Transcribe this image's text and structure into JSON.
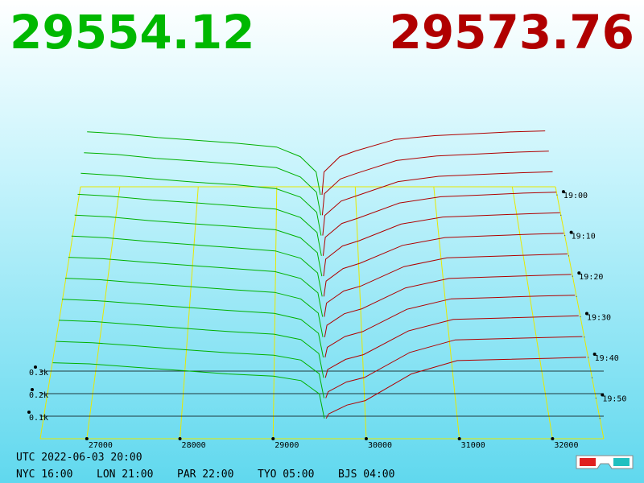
{
  "chart_data": {
    "type": "depth3d",
    "bid_price": 29554.12,
    "ask_price": 29573.76,
    "bid_color": "#00b000",
    "ask_color": "#b00000",
    "bid_prices": [
      26600,
      27000,
      27500,
      28000,
      28500,
      29000,
      29300,
      29500,
      29554
    ],
    "ask_prices": [
      29574,
      29600,
      29800,
      30000,
      30500,
      31000,
      31500,
      32000,
      32400
    ],
    "xlim": [
      26500,
      32550
    ],
    "xticks": [
      27000,
      28000,
      29000,
      30000,
      31000,
      32000
    ],
    "tlim": [
      -2,
      60
    ],
    "tticks": [
      {
        "value": 0,
        "label": "19:00"
      },
      {
        "value": 10,
        "label": "19:10"
      },
      {
        "value": 20,
        "label": "19:20"
      },
      {
        "value": 30,
        "label": "19:30"
      },
      {
        "value": 40,
        "label": "19:40"
      },
      {
        "value": 50,
        "label": "19:50"
      }
    ],
    "zlim": [
      0,
      400
    ],
    "zticks": [
      {
        "value": 100,
        "label": "0.1k"
      },
      {
        "value": 200,
        "label": "0.2k"
      },
      {
        "value": 300,
        "label": "0.3k"
      }
    ],
    "rows": [
      {
        "t": 0,
        "bids": [
          330,
          320,
          300,
          285,
          270,
          250,
          200,
          120,
          0
        ],
        "asks": [
          0,
          120,
          200,
          230,
          290,
          310,
          320,
          330,
          335
        ]
      },
      {
        "t": 5,
        "bids": [
          322,
          314,
          293,
          279,
          263,
          245,
          197,
          119,
          0
        ],
        "asks": [
          0,
          111,
          187,
          216,
          282,
          305,
          315,
          325,
          330
        ]
      },
      {
        "t": 10,
        "bids": [
          316,
          306,
          288,
          271,
          258,
          238,
          195,
          118,
          0
        ],
        "asks": [
          0,
          102,
          175,
          203,
          274,
          301,
          310,
          319,
          324
        ]
      },
      {
        "t": 15,
        "bids": [
          308,
          299,
          280,
          266,
          251,
          234,
          192,
          117,
          0
        ],
        "asks": [
          0,
          93,
          162,
          189,
          265,
          296,
          305,
          314,
          319
        ]
      },
      {
        "t": 20,
        "bids": [
          301,
          293,
          274,
          259,
          245,
          229,
          189,
          116,
          0
        ],
        "asks": [
          0,
          84,
          149,
          175,
          257,
          292,
          300,
          308,
          313
        ]
      },
      {
        "t": 25,
        "bids": [
          294,
          286,
          268,
          253,
          238,
          222,
          186,
          115,
          0
        ],
        "asks": [
          0,
          75,
          136,
          162,
          249,
          287,
          295,
          303,
          308
        ]
      },
      {
        "t": 30,
        "bids": [
          286,
          279,
          262,
          247,
          232,
          217,
          184,
          115,
          0
        ],
        "asks": [
          0,
          66,
          124,
          148,
          241,
          283,
          290,
          297,
          302
        ]
      },
      {
        "t": 35,
        "bids": [
          279,
          272,
          255,
          240,
          225,
          212,
          181,
          114,
          0
        ],
        "asks": [
          0,
          56,
          111,
          134,
          233,
          278,
          285,
          292,
          297
        ]
      },
      {
        "t": 40,
        "bids": [
          272,
          265,
          249,
          234,
          219,
          206,
          178,
          113,
          0
        ],
        "asks": [
          0,
          47,
          98,
          121,
          225,
          274,
          280,
          287,
          291
        ]
      },
      {
        "t": 45,
        "bids": [
          265,
          259,
          243,
          228,
          213,
          201,
          176,
          112,
          0
        ],
        "asks": [
          0,
          38,
          85,
          107,
          216,
          269,
          275,
          281,
          286
        ]
      },
      {
        "t": 50,
        "bids": [
          258,
          252,
          237,
          221,
          206,
          195,
          173,
          111,
          0
        ],
        "asks": [
          0,
          29,
          73,
          94,
          208,
          265,
          270,
          276,
          280
        ]
      },
      {
        "t": 55,
        "bids": [
          250,
          245,
          230,
          215,
          200,
          190,
          170,
          110,
          0
        ],
        "asks": [
          0,
          20,
          60,
          80,
          200,
          260,
          265,
          270,
          275
        ]
      }
    ]
  },
  "footer": {
    "utc": "UTC 2022-06-03 20:00",
    "clocks": [
      "NYC 16:00",
      "LON 21:00",
      "PAR 22:00",
      "TYO 05:00",
      "BJS 04:00"
    ]
  }
}
